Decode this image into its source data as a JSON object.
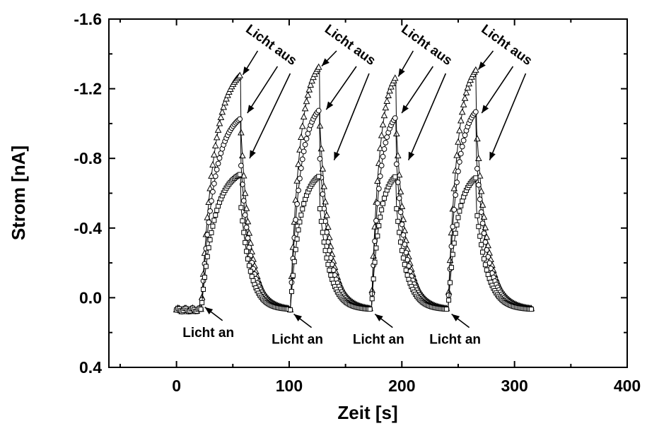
{
  "chart_data": {
    "type": "line",
    "xlabel": "Zeit [s]",
    "ylabel": "Strom [nA]",
    "xlim": [
      -60,
      400
    ],
    "ylim": [
      0.4,
      -1.6
    ],
    "y_axis_reversed": true,
    "grid": false,
    "x_ticks": [
      {
        "value": 0,
        "label": "0"
      },
      {
        "value": 100,
        "label": "100"
      },
      {
        "value": 200,
        "label": "200"
      },
      {
        "value": 300,
        "label": "300"
      },
      {
        "value": 400,
        "label": "400"
      }
    ],
    "y_ticks": [
      {
        "value": -1.6,
        "label": "-1.6"
      },
      {
        "value": -1.2,
        "label": "-1.2"
      },
      {
        "value": -0.8,
        "label": "-0.8"
      },
      {
        "value": -0.4,
        "label": "-0.4"
      },
      {
        "value": 0.0,
        "label": "0.0"
      },
      {
        "value": 0.4,
        "label": "0.4"
      }
    ],
    "x_minor_step": 50,
    "y_minor_step": 0.2,
    "cycles": [
      {
        "on": 22,
        "off": 57,
        "end": 100
      },
      {
        "on": 101,
        "off": 127,
        "end": 172
      },
      {
        "on": 173,
        "off": 195,
        "end": 240
      },
      {
        "on": 241,
        "off": 266,
        "end": 315
      }
    ],
    "baseline": 0.07,
    "series": [
      {
        "marker": "triangle",
        "peaks": [
          -1.28,
          -1.33,
          -1.27,
          -1.31
        ]
      },
      {
        "marker": "circle",
        "peaks": [
          -1.03,
          -1.08,
          -1.04,
          -1.07
        ]
      },
      {
        "marker": "square",
        "peaks": [
          -0.71,
          -0.7,
          -0.7,
          -0.69
        ]
      }
    ],
    "annotations": {
      "on_label": "Licht an",
      "off_label": "Licht aus",
      "on_points": [
        {
          "x": 22,
          "y": 0.03,
          "text": "Licht an"
        },
        {
          "x": 101,
          "y": 0.07,
          "text": "Licht an"
        },
        {
          "x": 173,
          "y": 0.07,
          "text": "Licht an"
        },
        {
          "x": 241,
          "y": 0.07,
          "text": "Licht an"
        }
      ],
      "off_groups": [
        {
          "text": "Licht aus",
          "targets": [
            [
              57,
              -1.28
            ],
            [
              61,
              -1.06
            ],
            [
              63,
              -0.8
            ]
          ]
        },
        {
          "text": "Licht aus",
          "targets": [
            [
              127,
              -1.33
            ],
            [
              131,
              -1.08
            ],
            [
              138,
              -0.79
            ]
          ]
        },
        {
          "text": "Licht aus",
          "targets": [
            [
              195,
              -1.27
            ],
            [
              198,
              -1.06
            ],
            [
              204,
              -0.79
            ]
          ]
        },
        {
          "text": "Licht aus",
          "targets": [
            [
              266,
              -1.31
            ],
            [
              269,
              -1.06
            ],
            [
              276,
              -0.79
            ]
          ]
        }
      ]
    }
  }
}
